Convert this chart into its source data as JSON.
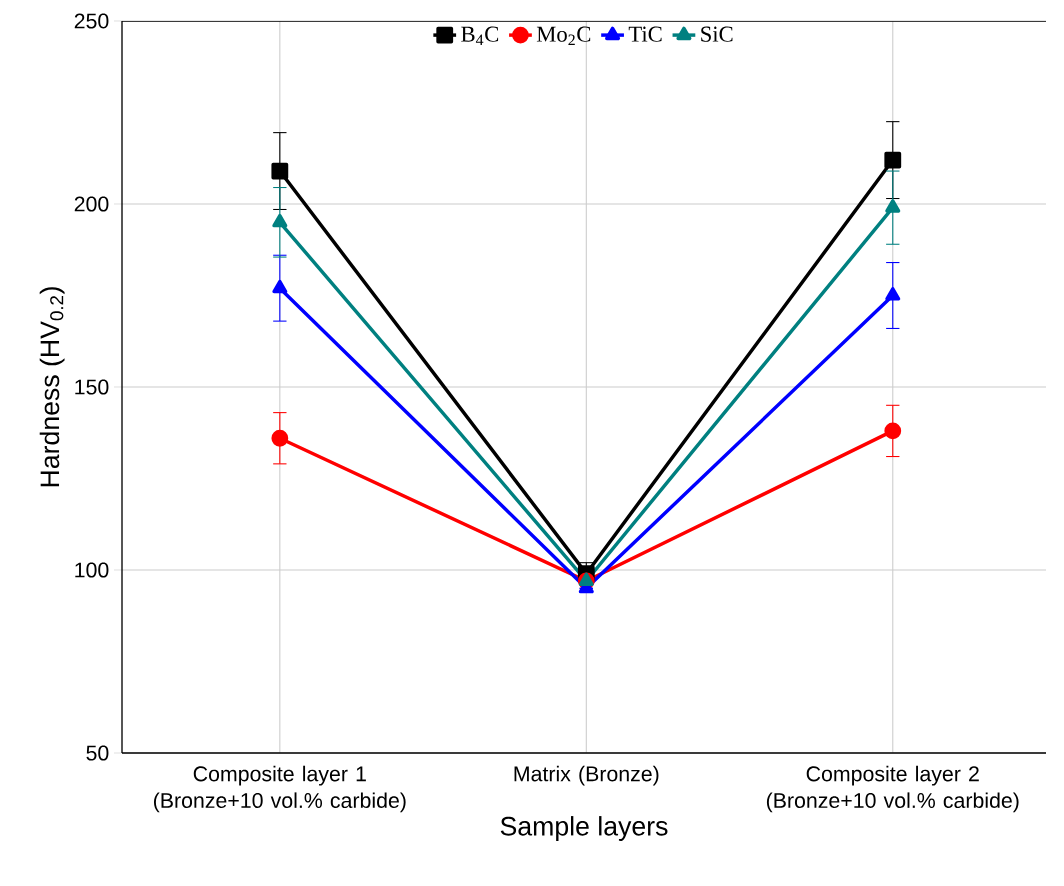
{
  "chart_data": {
    "type": "line",
    "categories": [
      "Composite layer 1 (Bronze+10 vol.% carbide)",
      "Matrix (Bronze)",
      "Composite layer 2 (Bronze+10 vol.% carbide)"
    ],
    "xlabel": "Sample layers",
    "ylabel": "Hardness (HV$_{0.2}$)",
    "ylim": [
      50,
      250
    ],
    "yticks": [
      50,
      100,
      150,
      200,
      250
    ],
    "grid": true,
    "legend": "top",
    "line_style": "solid",
    "series": [
      {
        "name": "B$_{4}$C",
        "color": "#000000",
        "marker": "square",
        "values": [
          209,
          99,
          212
        ],
        "errors": [
          10.5,
          3,
          10.5
        ]
      },
      {
        "name": "Mo$_{2}$C",
        "color": "#ff0000",
        "marker": "circle",
        "values": [
          136,
          97,
          138
        ],
        "errors": [
          7,
          null,
          7
        ]
      },
      {
        "name": "TiC",
        "color": "#0000ff",
        "marker": "triangle",
        "values": [
          177,
          95,
          175
        ],
        "errors": [
          9,
          null,
          9
        ]
      },
      {
        "name": "SiC",
        "color": "#008080",
        "marker": "triangle_down",
        "values": [
          195,
          97,
          199
        ],
        "errors": [
          9.5,
          null,
          10
        ]
      }
    ]
  }
}
